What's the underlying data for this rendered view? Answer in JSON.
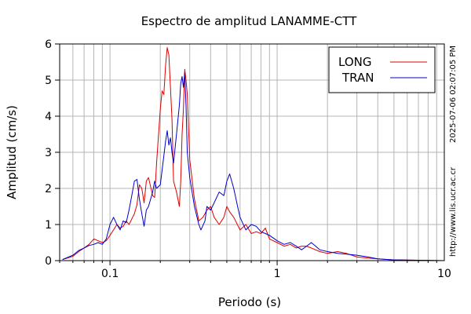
{
  "chart_data": {
    "type": "line",
    "title": "Espectro de amplitud LANAMME-CTT",
    "xlabel": "Periodo (s)",
    "ylabel": "Amplitud (cm/s)",
    "x_scale": "log",
    "xlim": [
      0.05,
      10
    ],
    "ylim": [
      0,
      6
    ],
    "x_ticks": [
      {
        "value": 0.1,
        "label": "0.1"
      },
      {
        "value": 1,
        "label": "1"
      },
      {
        "value": 10,
        "label": "10"
      }
    ],
    "y_ticks": [
      {
        "value": 0,
        "label": "0"
      },
      {
        "value": 1,
        "label": "1"
      },
      {
        "value": 2,
        "label": "2"
      },
      {
        "value": 3,
        "label": "3"
      },
      {
        "value": 4,
        "label": "4"
      },
      {
        "value": 5,
        "label": "5"
      },
      {
        "value": 6,
        "label": "6"
      }
    ],
    "grid": true,
    "legend_position": "top-right",
    "series": [
      {
        "name": "LONG",
        "color": "#dd0000",
        "points": [
          [
            0.052,
            0.03
          ],
          [
            0.06,
            0.12
          ],
          [
            0.065,
            0.25
          ],
          [
            0.07,
            0.35
          ],
          [
            0.075,
            0.45
          ],
          [
            0.08,
            0.6
          ],
          [
            0.085,
            0.55
          ],
          [
            0.09,
            0.5
          ],
          [
            0.095,
            0.55
          ],
          [
            0.1,
            0.7
          ],
          [
            0.105,
            0.85
          ],
          [
            0.11,
            1.0
          ],
          [
            0.115,
            0.9
          ],
          [
            0.12,
            0.95
          ],
          [
            0.125,
            1.1
          ],
          [
            0.13,
            1.0
          ],
          [
            0.14,
            1.3
          ],
          [
            0.145,
            1.55
          ],
          [
            0.15,
            2.1
          ],
          [
            0.155,
            2.0
          ],
          [
            0.16,
            1.6
          ],
          [
            0.165,
            2.2
          ],
          [
            0.17,
            2.3
          ],
          [
            0.18,
            1.8
          ],
          [
            0.185,
            1.75
          ],
          [
            0.19,
            2.7
          ],
          [
            0.2,
            4.2
          ],
          [
            0.205,
            4.7
          ],
          [
            0.21,
            4.6
          ],
          [
            0.215,
            5.4
          ],
          [
            0.22,
            5.9
          ],
          [
            0.225,
            5.7
          ],
          [
            0.23,
            4.8
          ],
          [
            0.235,
            3.9
          ],
          [
            0.24,
            2.2
          ],
          [
            0.25,
            1.9
          ],
          [
            0.26,
            1.5
          ],
          [
            0.265,
            2.2
          ],
          [
            0.27,
            3.5
          ],
          [
            0.275,
            4.2
          ],
          [
            0.28,
            5.3
          ],
          [
            0.285,
            5.0
          ],
          [
            0.29,
            4.6
          ],
          [
            0.3,
            2.8
          ],
          [
            0.32,
            1.7
          ],
          [
            0.34,
            1.1
          ],
          [
            0.36,
            1.2
          ],
          [
            0.38,
            1.4
          ],
          [
            0.4,
            1.5
          ],
          [
            0.42,
            1.2
          ],
          [
            0.45,
            1.0
          ],
          [
            0.48,
            1.2
          ],
          [
            0.5,
            1.5
          ],
          [
            0.52,
            1.35
          ],
          [
            0.55,
            1.2
          ],
          [
            0.6,
            0.85
          ],
          [
            0.65,
            1.0
          ],
          [
            0.7,
            0.75
          ],
          [
            0.75,
            0.8
          ],
          [
            0.8,
            0.75
          ],
          [
            0.85,
            0.9
          ],
          [
            0.9,
            0.6
          ],
          [
            1.0,
            0.5
          ],
          [
            1.1,
            0.4
          ],
          [
            1.2,
            0.45
          ],
          [
            1.3,
            0.35
          ],
          [
            1.4,
            0.4
          ],
          [
            1.5,
            0.4
          ],
          [
            1.6,
            0.35
          ],
          [
            1.8,
            0.25
          ],
          [
            2.0,
            0.2
          ],
          [
            2.3,
            0.25
          ],
          [
            2.6,
            0.2
          ],
          [
            3.0,
            0.1
          ],
          [
            3.5,
            0.07
          ],
          [
            4.0,
            0.05
          ],
          [
            5.0,
            0.02
          ],
          [
            7.0,
            0.01
          ],
          [
            10.0,
            0.0
          ]
        ]
      },
      {
        "name": "TRAN",
        "color": "#0000cc",
        "points": [
          [
            0.052,
            0.03
          ],
          [
            0.06,
            0.15
          ],
          [
            0.065,
            0.28
          ],
          [
            0.07,
            0.35
          ],
          [
            0.075,
            0.42
          ],
          [
            0.08,
            0.45
          ],
          [
            0.085,
            0.5
          ],
          [
            0.09,
            0.45
          ],
          [
            0.095,
            0.6
          ],
          [
            0.1,
            1.0
          ],
          [
            0.105,
            1.2
          ],
          [
            0.11,
            1.0
          ],
          [
            0.115,
            0.85
          ],
          [
            0.12,
            1.1
          ],
          [
            0.125,
            1.05
          ],
          [
            0.13,
            1.4
          ],
          [
            0.135,
            1.8
          ],
          [
            0.14,
            2.2
          ],
          [
            0.145,
            2.25
          ],
          [
            0.15,
            1.7
          ],
          [
            0.155,
            1.3
          ],
          [
            0.16,
            0.95
          ],
          [
            0.165,
            1.4
          ],
          [
            0.17,
            1.5
          ],
          [
            0.18,
            1.9
          ],
          [
            0.185,
            2.2
          ],
          [
            0.19,
            2.0
          ],
          [
            0.2,
            2.1
          ],
          [
            0.21,
            2.9
          ],
          [
            0.215,
            3.3
          ],
          [
            0.22,
            3.6
          ],
          [
            0.225,
            3.2
          ],
          [
            0.23,
            3.4
          ],
          [
            0.235,
            3.0
          ],
          [
            0.24,
            2.7
          ],
          [
            0.25,
            3.5
          ],
          [
            0.26,
            4.3
          ],
          [
            0.265,
            4.9
          ],
          [
            0.27,
            5.1
          ],
          [
            0.275,
            4.8
          ],
          [
            0.28,
            5.2
          ],
          [
            0.285,
            4.3
          ],
          [
            0.29,
            3.0
          ],
          [
            0.3,
            2.3
          ],
          [
            0.32,
            1.5
          ],
          [
            0.34,
            1.0
          ],
          [
            0.35,
            0.85
          ],
          [
            0.37,
            1.1
          ],
          [
            0.38,
            1.5
          ],
          [
            0.4,
            1.4
          ],
          [
            0.42,
            1.6
          ],
          [
            0.45,
            1.9
          ],
          [
            0.48,
            1.8
          ],
          [
            0.5,
            2.2
          ],
          [
            0.52,
            2.4
          ],
          [
            0.55,
            2.0
          ],
          [
            0.58,
            1.5
          ],
          [
            0.6,
            1.2
          ],
          [
            0.65,
            0.85
          ],
          [
            0.7,
            1.0
          ],
          [
            0.75,
            0.95
          ],
          [
            0.8,
            0.8
          ],
          [
            0.85,
            0.75
          ],
          [
            0.9,
            0.7
          ],
          [
            1.0,
            0.55
          ],
          [
            1.1,
            0.45
          ],
          [
            1.2,
            0.5
          ],
          [
            1.3,
            0.4
          ],
          [
            1.4,
            0.3
          ],
          [
            1.5,
            0.4
          ],
          [
            1.6,
            0.5
          ],
          [
            1.7,
            0.4
          ],
          [
            1.8,
            0.3
          ],
          [
            2.0,
            0.25
          ],
          [
            2.3,
            0.2
          ],
          [
            2.6,
            0.18
          ],
          [
            3.0,
            0.15
          ],
          [
            3.5,
            0.1
          ],
          [
            4.0,
            0.05
          ],
          [
            5.0,
            0.02
          ],
          [
            7.0,
            0.01
          ],
          [
            10.0,
            0.0
          ]
        ]
      }
    ]
  },
  "side_text": {
    "timestamp": "2025-07-06 02:07:05 PM",
    "url": "http://www.lis.ucr.ac.cr"
  }
}
